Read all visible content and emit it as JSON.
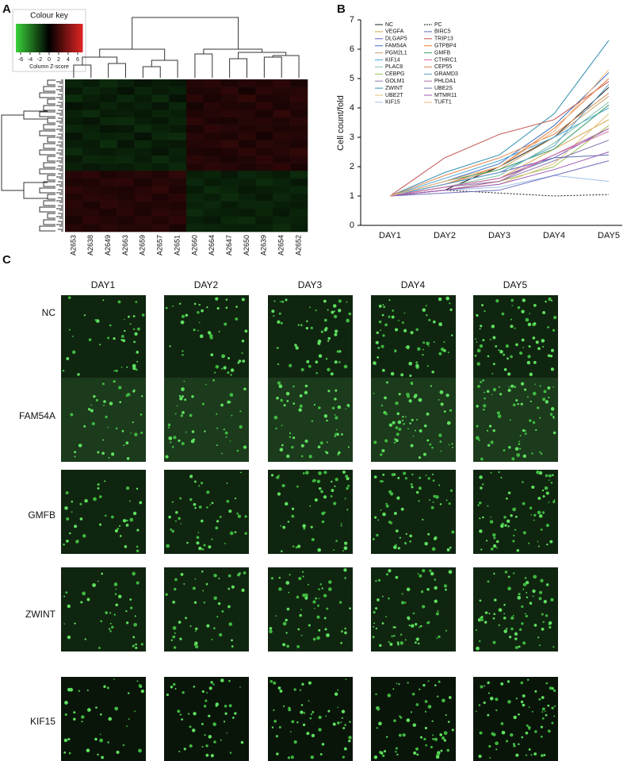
{
  "panel_labels": [
    "A",
    "B",
    "C"
  ],
  "chart_data": [
    {
      "type": "heatmap",
      "title": "Colour key",
      "colorbar_label": "Column Z-score",
      "clim": [
        -7,
        7
      ],
      "colorbar_ticks": [
        -6,
        -4,
        -2,
        0,
        2,
        4,
        6
      ],
      "colors": [
        "#3ad13a",
        "#000000",
        "#e02424"
      ],
      "columns": [
        "A2653",
        "A2638",
        "A2649",
        "A2663",
        "A2659",
        "A2657",
        "A2651",
        "A2660",
        "A2664",
        "A2647",
        "A2650",
        "A2639",
        "A2654",
        "A2652"
      ],
      "values": [
        [
          -1.2,
          -0.9,
          -1.4,
          -1.1,
          -0.7,
          -1.0,
          -0.8,
          1.1,
          1.3,
          0.9,
          1.2,
          1.0,
          1.4,
          0.8
        ],
        [
          -0.8,
          -1.3,
          -1.0,
          -0.6,
          -1.2,
          -0.9,
          -1.1,
          0.9,
          1.0,
          1.4,
          0.7,
          1.3,
          1.1,
          1.2
        ],
        [
          -1.5,
          -1.0,
          -0.8,
          -1.3,
          -0.9,
          -1.4,
          -0.6,
          1.3,
          0.8,
          1.1,
          1.5,
          0.9,
          1.0,
          1.4
        ],
        [
          -0.6,
          -0.8,
          -1.2,
          -0.9,
          -1.1,
          -0.7,
          -1.3,
          0.7,
          1.2,
          1.0,
          0.9,
          1.4,
          0.8,
          1.1
        ],
        [
          -1.1,
          -1.4,
          -0.9,
          -1.0,
          -0.8,
          -1.2,
          -1.0,
          1.0,
          1.1,
          1.3,
          1.2,
          0.8,
          1.5,
          0.9
        ],
        [
          -0.9,
          -0.7,
          -1.3,
          -1.4,
          -1.0,
          -0.8,
          -1.2,
          1.4,
          0.9,
          0.8,
          1.1,
          1.2,
          1.0,
          1.3
        ],
        [
          -1.3,
          -1.1,
          -0.7,
          -0.8,
          -1.4,
          -1.1,
          -0.9,
          0.8,
          1.4,
          1.2,
          1.0,
          1.1,
          0.9,
          1.0
        ],
        [
          -0.7,
          -1.2,
          -1.1,
          -1.2,
          -0.6,
          -1.3,
          -1.4,
          1.2,
          1.0,
          0.9,
          1.3,
          0.7,
          1.3,
          1.1
        ],
        [
          -1.0,
          -0.9,
          -1.5,
          -0.7,
          -1.3,
          -0.9,
          -0.8,
          1.1,
          1.2,
          1.5,
          0.8,
          1.3,
          1.1,
          0.9
        ],
        [
          -1.4,
          -1.0,
          -0.9,
          -1.1,
          -1.0,
          -0.7,
          -1.1,
          0.9,
          0.8,
          1.0,
          1.4,
          1.0,
          1.2,
          1.5
        ],
        [
          -0.8,
          -1.3,
          -1.2,
          -1.3,
          -0.9,
          -1.4,
          -1.0,
          1.3,
          1.1,
          0.8,
          1.0,
          1.4,
          0.9,
          1.2
        ],
        [
          -1.1,
          -0.8,
          -1.0,
          -0.9,
          -1.2,
          -1.0,
          -1.3,
          1.0,
          1.3,
          1.2,
          0.9,
          1.1,
          1.4,
          0.8
        ],
        [
          1.2,
          1.4,
          0.9,
          1.1,
          1.3,
          1.0,
          1.5,
          -1.0,
          -1.2,
          -0.8,
          -1.3,
          -1.1,
          -0.9,
          -1.4
        ],
        [
          0.9,
          1.0,
          1.3,
          1.4,
          0.8,
          1.2,
          1.1,
          -1.3,
          -0.9,
          -1.1,
          -1.0,
          -1.4,
          -1.2,
          -0.8
        ],
        [
          1.4,
          1.1,
          1.0,
          0.9,
          1.2,
          1.5,
          0.9,
          -0.9,
          -1.4,
          -1.2,
          -0.8,
          -1.0,
          -1.1,
          -1.3
        ],
        [
          1.0,
          1.3,
          1.2,
          1.0,
          1.4,
          0.9,
          1.3,
          -1.2,
          -1.0,
          -1.4,
          -1.1,
          -0.8,
          -1.3,
          -1.0
        ],
        [
          1.3,
          0.9,
          1.4,
          1.2,
          1.0,
          1.1,
          1.0,
          -1.1,
          -1.3,
          -0.9,
          -1.2,
          -1.3,
          -1.0,
          -0.9
        ],
        [
          1.1,
          1.2,
          0.8,
          1.3,
          0.9,
          1.4,
          1.2,
          -1.4,
          -1.1,
          -1.0,
          -0.9,
          -1.2,
          -0.8,
          -1.2
        ],
        [
          0.8,
          1.4,
          1.1,
          0.9,
          1.3,
          1.0,
          1.4,
          -1.0,
          -0.8,
          -1.3,
          -1.4,
          -0.9,
          -1.2,
          -1.1
        ],
        [
          1.2,
          1.0,
          1.3,
          1.1,
          1.1,
          1.3,
          0.8,
          -1.3,
          -1.2,
          -1.1,
          -1.0,
          -1.1,
          -1.4,
          -1.0
        ]
      ]
    },
    {
      "type": "line",
      "y_label": "Cell count/fold",
      "categories": [
        "DAY1",
        "DAY2",
        "DAY3",
        "DAY4",
        "DAY5"
      ],
      "ylim": [
        0,
        7
      ],
      "yticks": [
        0,
        1,
        2,
        3,
        4,
        5,
        6,
        7
      ],
      "series": [
        {
          "name": "NC",
          "color": "#222222",
          "values": [
            1,
            1.2,
            2.0,
            3.0,
            4.7
          ]
        },
        {
          "name": "VEGFA",
          "color": "#d4a84a",
          "values": [
            1,
            1.3,
            1.6,
            2.6,
            3.6
          ]
        },
        {
          "name": "DLGAP5",
          "color": "#6a5acd",
          "values": [
            1,
            1.4,
            1.8,
            2.3,
            3.3
          ]
        },
        {
          "name": "FAM54A",
          "color": "#3a6ebd",
          "values": [
            1,
            1.5,
            2.1,
            3.4,
            5.2
          ]
        },
        {
          "name": "PGM2L1",
          "color": "#c8a26a",
          "values": [
            1,
            1.4,
            1.9,
            3.0,
            4.4
          ]
        },
        {
          "name": "KIF14",
          "color": "#4aa3d8",
          "values": [
            1,
            1.6,
            2.2,
            3.0,
            4.0
          ]
        },
        {
          "name": "PLAC8",
          "color": "#7fc4a8",
          "values": [
            1,
            1.3,
            1.7,
            2.8,
            4.2
          ]
        },
        {
          "name": "CEBPG",
          "color": "#9dbf5a",
          "values": [
            1,
            1.2,
            1.5,
            2.0,
            3.4
          ]
        },
        {
          "name": "GOLM1",
          "color": "#8a7ab0",
          "values": [
            1,
            1.3,
            1.5,
            2.2,
            2.9
          ]
        },
        {
          "name": "ZWINT",
          "color": "#2f8fb0",
          "values": [
            1,
            1.8,
            2.4,
            3.8,
            6.3
          ]
        },
        {
          "name": "UBE2T",
          "color": "#e3c27a",
          "values": [
            1,
            1.2,
            1.4,
            2.1,
            3.8
          ]
        },
        {
          "name": "KIF15",
          "color": "#a0c0e8",
          "values": [
            1,
            1.2,
            1.3,
            1.7,
            1.5
          ]
        },
        {
          "name": "PC",
          "color": "#111111",
          "dashed": true,
          "values": [
            1,
            1.2,
            1.1,
            1.0,
            1.05
          ]
        },
        {
          "name": "BIRC5",
          "color": "#5b6fb5",
          "values": [
            1,
            1.3,
            1.6,
            2.3,
            2.4
          ]
        },
        {
          "name": "TRIP13",
          "color": "#c0504d",
          "values": [
            1,
            2.3,
            3.1,
            3.6,
            4.9
          ]
        },
        {
          "name": "GTPBP4",
          "color": "#e57b3a",
          "values": [
            1,
            1.4,
            2.0,
            3.3,
            5.0
          ]
        },
        {
          "name": "GMFB",
          "color": "#3c9e6a",
          "values": [
            1,
            1.5,
            1.9,
            2.6,
            4.1
          ]
        },
        {
          "name": "CTHRC1",
          "color": "#d76fa6",
          "values": [
            1,
            1.3,
            1.6,
            2.4,
            3.2
          ]
        },
        {
          "name": "CEP55",
          "color": "#e08850",
          "values": [
            1,
            1.7,
            2.3,
            3.1,
            4.5
          ]
        },
        {
          "name": "GRAMD3",
          "color": "#5fa0c8",
          "values": [
            1,
            1.4,
            1.8,
            2.7,
            4.8
          ]
        },
        {
          "name": "PHLDA1",
          "color": "#b56b9c",
          "values": [
            1,
            1.2,
            1.5,
            2.4,
            3.3
          ]
        },
        {
          "name": "UBE2S",
          "color": "#7070c0",
          "values": [
            1,
            1.1,
            1.2,
            1.7,
            2.2
          ]
        },
        {
          "name": "MTMR11",
          "color": "#9b59b6",
          "values": [
            1,
            1.2,
            1.4,
            1.9,
            2.5
          ]
        },
        {
          "name": "TUFT1",
          "color": "#f2b880",
          "values": [
            1,
            1.5,
            2.0,
            3.2,
            5.3
          ]
        }
      ]
    }
  ],
  "micrographs": {
    "columns": [
      "DAY1",
      "DAY2",
      "DAY3",
      "DAY4",
      "DAY5"
    ],
    "rows": [
      "NC",
      "FAM54A",
      "GMFB",
      "ZWINT",
      "KIF15"
    ]
  }
}
